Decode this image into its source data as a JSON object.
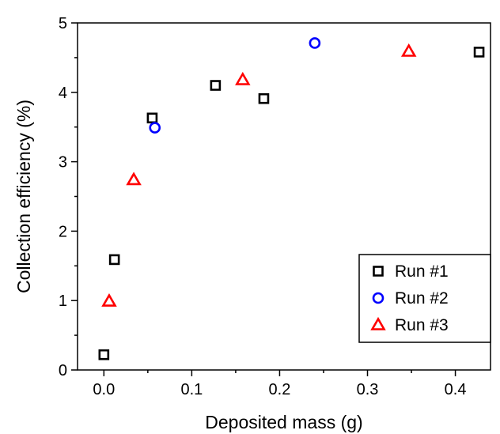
{
  "chart_data": {
    "type": "scatter",
    "title": "",
    "xlabel": "Deposited mass (g)",
    "ylabel": "Collection efficiency (%)",
    "xlim": [
      -0.03,
      0.44
    ],
    "ylim": [
      0,
      5
    ],
    "xticks": [
      0.0,
      0.1,
      0.2,
      0.3,
      0.4
    ],
    "xtick_labels": [
      "0.0",
      "0.1",
      "0.2",
      "0.3",
      "0.4"
    ],
    "yticks": [
      0,
      1,
      2,
      3,
      4,
      5
    ],
    "ytick_labels": [
      "0",
      "1",
      "2",
      "3",
      "4",
      "5"
    ],
    "grid": false,
    "legend_position": "bottom-right",
    "series": [
      {
        "name": "Run #1",
        "marker": "square",
        "color": "#000000",
        "points": [
          [
            0.0,
            0.22
          ],
          [
            0.012,
            1.59
          ],
          [
            0.055,
            3.63
          ],
          [
            0.127,
            4.1
          ],
          [
            0.182,
            3.91
          ],
          [
            0.427,
            4.58
          ]
        ]
      },
      {
        "name": "Run #2",
        "marker": "circle",
        "color": "#0000ff",
        "points": [
          [
            0.058,
            3.49
          ],
          [
            0.24,
            4.71
          ]
        ]
      },
      {
        "name": "Run #3",
        "marker": "triangle",
        "color": "#ff0000",
        "points": [
          [
            0.006,
            0.99
          ],
          [
            0.034,
            2.74
          ],
          [
            0.158,
            4.18
          ],
          [
            0.347,
            4.59
          ]
        ]
      }
    ]
  }
}
